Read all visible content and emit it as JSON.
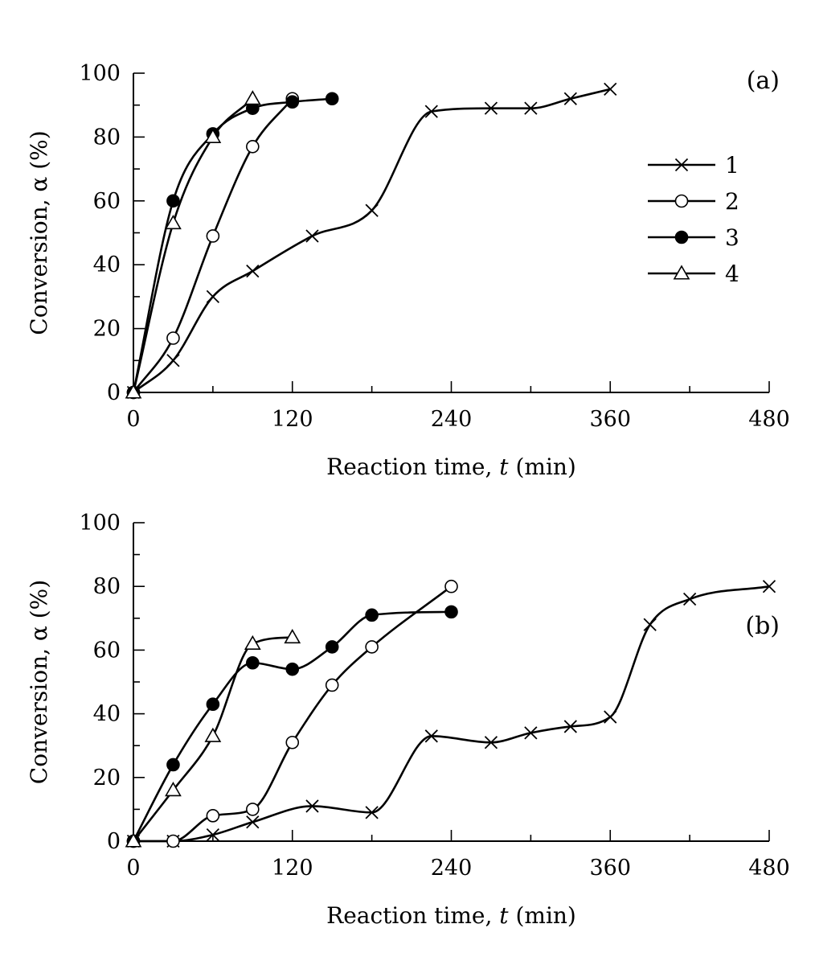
{
  "chart_data": [
    {
      "type": "scatter",
      "panel_label": "(a)",
      "xlabel_main": "Reaction time, ",
      "xlabel_var": "t",
      "xlabel_unit": " (min)",
      "ylabel": "Conversion, α (%)",
      "xlim": [
        0,
        480
      ],
      "ylim": [
        0,
        100
      ],
      "xticks": [
        "0",
        "120",
        "240",
        "360",
        "480"
      ],
      "yticks": [
        "0",
        "20",
        "40",
        "60",
        "80",
        "100"
      ],
      "legend": {
        "placement": "top-right",
        "entries": [
          "1",
          "2",
          "3",
          "4"
        ]
      },
      "series": [
        {
          "name": "1",
          "marker": "cross",
          "x": [
            0,
            30,
            60,
            90,
            135,
            180,
            225,
            270,
            300,
            330,
            360
          ],
          "y": [
            0,
            10,
            30,
            38,
            49,
            57,
            88,
            89,
            89,
            92,
            95
          ]
        },
        {
          "name": "2",
          "marker": "open-circle",
          "x": [
            0,
            30,
            60,
            90,
            120
          ],
          "y": [
            0,
            17,
            49,
            77,
            92
          ]
        },
        {
          "name": "3",
          "marker": "filled-circle",
          "x": [
            0,
            30,
            60,
            90,
            120,
            150
          ],
          "y": [
            0,
            60,
            81,
            89,
            91,
            92
          ]
        },
        {
          "name": "4",
          "marker": "open-triangle",
          "x": [
            0,
            30,
            60,
            90
          ],
          "y": [
            0,
            53,
            80,
            92
          ]
        }
      ]
    },
    {
      "type": "scatter",
      "panel_label": "(b)",
      "xlabel_main": "Reaction time, ",
      "xlabel_var": "t",
      "xlabel_unit": " (min)",
      "ylabel": "Conversion, α (%)",
      "xlim": [
        0,
        480
      ],
      "ylim": [
        0,
        100
      ],
      "xticks": [
        "0",
        "120",
        "240",
        "360",
        "480"
      ],
      "yticks": [
        "0",
        "20",
        "40",
        "60",
        "80",
        "100"
      ],
      "series": [
        {
          "name": "1",
          "marker": "cross",
          "x": [
            0,
            30,
            60,
            90,
            135,
            180,
            225,
            270,
            300,
            330,
            360,
            390,
            420,
            480
          ],
          "y": [
            0,
            0,
            2,
            6,
            11,
            9,
            33,
            31,
            34,
            36,
            39,
            68,
            76,
            80
          ]
        },
        {
          "name": "2",
          "marker": "open-circle",
          "x": [
            0,
            30,
            60,
            90,
            120,
            150,
            180,
            240
          ],
          "y": [
            0,
            0,
            8,
            10,
            31,
            49,
            61,
            80
          ]
        },
        {
          "name": "3",
          "marker": "filled-circle",
          "x": [
            0,
            30,
            60,
            90,
            120,
            150,
            180,
            240
          ],
          "y": [
            0,
            24,
            43,
            56,
            54,
            61,
            71,
            72
          ]
        },
        {
          "name": "4",
          "marker": "open-triangle",
          "x": [
            0,
            30,
            60,
            90,
            120
          ],
          "y": [
            0,
            16,
            33,
            62,
            64
          ]
        }
      ]
    }
  ]
}
